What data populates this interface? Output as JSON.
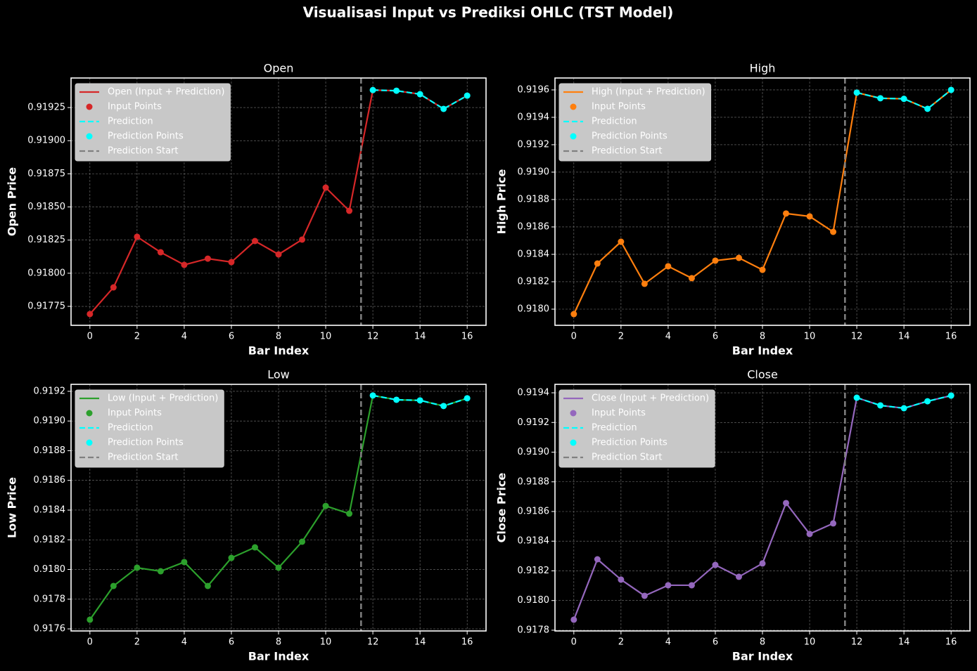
{
  "title": "Visualisasi Input vs Prediksi OHLC (TST Model)",
  "chart_data": [
    {
      "type": "line",
      "title": "Open",
      "xlabel": "Bar Index",
      "ylabel": "Open Price",
      "x": [
        0,
        1,
        2,
        3,
        4,
        5,
        6,
        7,
        8,
        9,
        10,
        11,
        12,
        13,
        14,
        15,
        16
      ],
      "xlim": [
        -0.8,
        16.8
      ],
      "xticks": [
        0,
        2,
        4,
        6,
        8,
        10,
        12,
        14,
        16
      ],
      "ylim": [
        0.917607,
        0.919473
      ],
      "yticks": [
        0.91775,
        {
          "value": 0.918,
          "label": "0.91800"
        },
        0.91825,
        {
          "value": 0.9185,
          "label": "0.91850"
        },
        0.91875,
        {
          "value": 0.919,
          "label": "0.91900"
        },
        0.91925
      ],
      "grid": true,
      "legend": "upper left",
      "series": [
        {
          "name": "Open (Input + Prediction)",
          "color": "#d62728",
          "style": "line",
          "values": [
            0.917692,
            0.917893,
            0.918275,
            0.918158,
            0.918063,
            0.91811,
            0.918084,
            0.918243,
            0.918142,
            0.918254,
            0.918646,
            0.918471,
            0.919382,
            0.919377,
            0.919351,
            0.91924,
            0.91934
          ]
        },
        {
          "name": "Input Points",
          "color": "#d62728",
          "style": "points",
          "values": [
            0.917692,
            0.917893,
            0.918275,
            0.918158,
            0.918063,
            0.91811,
            0.918084,
            0.918243,
            0.918142,
            0.918254,
            0.918646,
            0.918471,
            null,
            null,
            null,
            null,
            null
          ]
        },
        {
          "name": "Prediction",
          "color": "#00ffff",
          "style": "dashed",
          "values": [
            null,
            null,
            null,
            null,
            null,
            null,
            null,
            null,
            null,
            null,
            null,
            null,
            0.919382,
            0.919377,
            0.919351,
            0.91924,
            0.91934
          ]
        },
        {
          "name": "Prediction Points",
          "color": "#00ffff",
          "style": "points",
          "values": [
            null,
            null,
            null,
            null,
            null,
            null,
            null,
            null,
            null,
            null,
            null,
            null,
            0.919382,
            0.919377,
            0.919351,
            0.91924,
            0.91934
          ]
        },
        {
          "name": "Prediction Start",
          "color": "#808080",
          "style": "vline",
          "x": 11.5
        }
      ]
    },
    {
      "type": "line",
      "title": "High",
      "xlabel": "Bar Index",
      "ylabel": "High Price",
      "x": [
        0,
        1,
        2,
        3,
        4,
        5,
        6,
        7,
        8,
        9,
        10,
        11,
        12,
        13,
        14,
        15,
        16
      ],
      "xlim": [
        -0.8,
        16.8
      ],
      "xticks": [
        0,
        2,
        4,
        6,
        8,
        10,
        12,
        14,
        16
      ],
      "ylim": [
        0.917882,
        0.919687
      ],
      "yticks": [
        {
          "value": 0.918,
          "label": "0.9180"
        },
        0.9182,
        0.9184,
        0.9186,
        0.9188,
        {
          "value": 0.919,
          "label": "0.9190"
        },
        0.9192,
        0.9194,
        0.9196
      ],
      "grid": true,
      "legend": "upper left",
      "series": [
        {
          "name": "High (Input + Prediction)",
          "color": "#ff7f0e",
          "style": "line",
          "values": [
            0.917964,
            0.918333,
            0.918492,
            0.918185,
            0.918313,
            0.918226,
            0.918354,
            0.918374,
            0.918287,
            0.918698,
            0.918677,
            0.918564,
            0.91958,
            0.919539,
            0.919535,
            0.919462,
            0.9196
          ]
        },
        {
          "name": "Input Points",
          "color": "#ff7f0e",
          "style": "points",
          "values": [
            0.917964,
            0.918333,
            0.918492,
            0.918185,
            0.918313,
            0.918226,
            0.918354,
            0.918374,
            0.918287,
            0.918698,
            0.918677,
            0.918564,
            null,
            null,
            null,
            null,
            null
          ]
        },
        {
          "name": "Prediction",
          "color": "#00ffff",
          "style": "dashed",
          "values": [
            null,
            null,
            null,
            null,
            null,
            null,
            null,
            null,
            null,
            null,
            null,
            null,
            0.91958,
            0.919539,
            0.919535,
            0.919462,
            0.9196
          ]
        },
        {
          "name": "Prediction Points",
          "color": "#00ffff",
          "style": "points",
          "values": [
            null,
            null,
            null,
            null,
            null,
            null,
            null,
            null,
            null,
            null,
            null,
            null,
            0.91958,
            0.919539,
            0.919535,
            0.919462,
            0.9196
          ]
        },
        {
          "name": "Prediction Start",
          "color": "#808080",
          "style": "vline",
          "x": 11.5
        }
      ]
    },
    {
      "type": "line",
      "title": "Low",
      "xlabel": "Bar Index",
      "ylabel": "Low Price",
      "x": [
        0,
        1,
        2,
        3,
        4,
        5,
        6,
        7,
        8,
        9,
        10,
        11,
        12,
        13,
        14,
        15,
        16
      ],
      "xlim": [
        -0.8,
        16.8
      ],
      "xticks": [
        0,
        2,
        4,
        6,
        8,
        10,
        12,
        14,
        16
      ],
      "ylim": [
        0.917586,
        0.919247
      ],
      "yticks": [
        0.9176,
        0.9178,
        {
          "value": 0.918,
          "label": "0.9180"
        },
        0.9182,
        0.9184,
        0.9186,
        0.9188,
        {
          "value": 0.919,
          "label": "0.9190"
        },
        0.9192
      ],
      "grid": true,
      "legend": "upper left",
      "series": [
        {
          "name": "Low (Input + Prediction)",
          "color": "#2ca02c",
          "style": "line",
          "values": [
            0.917662,
            0.917889,
            0.918012,
            0.917988,
            0.91805,
            0.917889,
            0.918078,
            0.918149,
            0.918012,
            0.918187,
            0.918428,
            0.918376,
            0.919172,
            0.919143,
            0.919139,
            0.919101,
            0.919153
          ]
        },
        {
          "name": "Input Points",
          "color": "#2ca02c",
          "style": "points",
          "values": [
            0.917662,
            0.917889,
            0.918012,
            0.917988,
            0.91805,
            0.917889,
            0.918078,
            0.918149,
            0.918012,
            0.918187,
            0.918428,
            0.918376,
            null,
            null,
            null,
            null,
            null
          ]
        },
        {
          "name": "Prediction",
          "color": "#00ffff",
          "style": "dashed",
          "values": [
            null,
            null,
            null,
            null,
            null,
            null,
            null,
            null,
            null,
            null,
            null,
            null,
            0.919172,
            0.919143,
            0.919139,
            0.919101,
            0.919153
          ]
        },
        {
          "name": "Prediction Points",
          "color": "#00ffff",
          "style": "points",
          "values": [
            null,
            null,
            null,
            null,
            null,
            null,
            null,
            null,
            null,
            null,
            null,
            null,
            0.919172,
            0.919143,
            0.919139,
            0.919101,
            0.919153
          ]
        },
        {
          "name": "Prediction Start",
          "color": "#808080",
          "style": "vline",
          "x": 11.5
        }
      ]
    },
    {
      "type": "line",
      "title": "Close",
      "xlabel": "Bar Index",
      "ylabel": "Close Price",
      "x": [
        0,
        1,
        2,
        3,
        4,
        5,
        6,
        7,
        8,
        9,
        10,
        11,
        12,
        13,
        14,
        15,
        16
      ],
      "xlim": [
        -0.8,
        16.8
      ],
      "xticks": [
        0,
        2,
        4,
        6,
        8,
        10,
        12,
        14,
        16
      ],
      "ylim": [
        0.917795,
        0.919457
      ],
      "yticks": [
        0.9178,
        {
          "value": 0.918,
          "label": "0.9180"
        },
        0.9182,
        0.9184,
        0.9186,
        0.9188,
        {
          "value": 0.919,
          "label": "0.9190"
        },
        0.9192,
        0.9194
      ],
      "grid": true,
      "legend": "upper left",
      "series": [
        {
          "name": "Close (Input + Prediction)",
          "color": "#9467bd",
          "style": "line",
          "values": [
            0.917871,
            0.918278,
            0.918141,
            0.918032,
            0.918103,
            0.918103,
            0.91824,
            0.91816,
            0.91825,
            0.918657,
            0.918449,
            0.91852,
            0.919367,
            0.919315,
            0.919296,
            0.919343,
            0.919381
          ]
        },
        {
          "name": "Input Points",
          "color": "#9467bd",
          "style": "points",
          "values": [
            0.917871,
            0.918278,
            0.918141,
            0.918032,
            0.918103,
            0.918103,
            0.91824,
            0.91816,
            0.91825,
            0.918657,
            0.918449,
            0.91852,
            null,
            null,
            null,
            null,
            null
          ]
        },
        {
          "name": "Prediction",
          "color": "#00ffff",
          "style": "dashed",
          "values": [
            null,
            null,
            null,
            null,
            null,
            null,
            null,
            null,
            null,
            null,
            null,
            null,
            0.919367,
            0.919315,
            0.919296,
            0.919343,
            0.919381
          ]
        },
        {
          "name": "Prediction Points",
          "color": "#00ffff",
          "style": "points",
          "values": [
            null,
            null,
            null,
            null,
            null,
            null,
            null,
            null,
            null,
            null,
            null,
            null,
            0.919367,
            0.919315,
            0.919296,
            0.919343,
            0.919381
          ]
        },
        {
          "name": "Prediction Start",
          "color": "#808080",
          "style": "vline",
          "x": 11.5
        }
      ]
    }
  ]
}
